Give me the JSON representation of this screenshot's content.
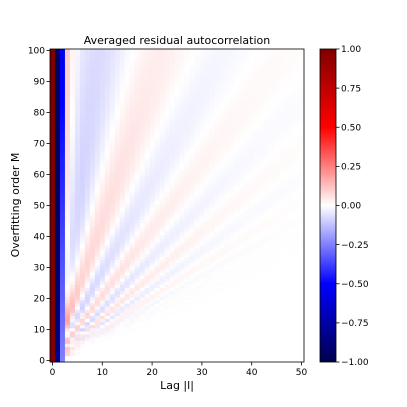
{
  "chart_data": {
    "type": "heatmap",
    "title": "Averaged residual autocorrelation",
    "xlabel": "Lag |l|",
    "ylabel": "Overfitting order M",
    "x_range": [
      0,
      50
    ],
    "y_range": [
      0,
      100
    ],
    "x_ticks": [
      0,
      10,
      20,
      30,
      40,
      50
    ],
    "y_ticks": [
      0,
      10,
      20,
      30,
      40,
      50,
      60,
      70,
      80,
      90,
      100
    ],
    "colorbar": {
      "range": [
        -1.0,
        1.0
      ],
      "ticks": [
        "1.00",
        "0.75",
        "0.50",
        "0.25",
        "0.00",
        "−0.25",
        "−0.50",
        "−0.75",
        "−1.00"
      ],
      "tick_values": [
        1.0,
        0.75,
        0.5,
        0.25,
        0.0,
        -0.25,
        -0.5,
        -0.75,
        -1.0
      ],
      "colormap": "seismic"
    },
    "pattern": {
      "lag0_value": 1.0,
      "lag1_value_range": [
        -0.75,
        -0.95
      ],
      "lag2_value_range": [
        -0.2,
        -0.55
      ],
      "lag3_value": 0.05,
      "lag4_value": 0.12,
      "far_field_value": 0.0,
      "description_visible_features": [
        "lag 0 column = 1.0 (dark red)",
        "lag 1-2 negative (blue)",
        "light red/blue diagonal bands decaying with lag and order"
      ]
    },
    "grid": false,
    "colors": {
      "max": "#800000",
      "positive": "#ff0000",
      "zero": "#ffffff",
      "negative": "#0000ff",
      "min": "#00004c"
    }
  }
}
